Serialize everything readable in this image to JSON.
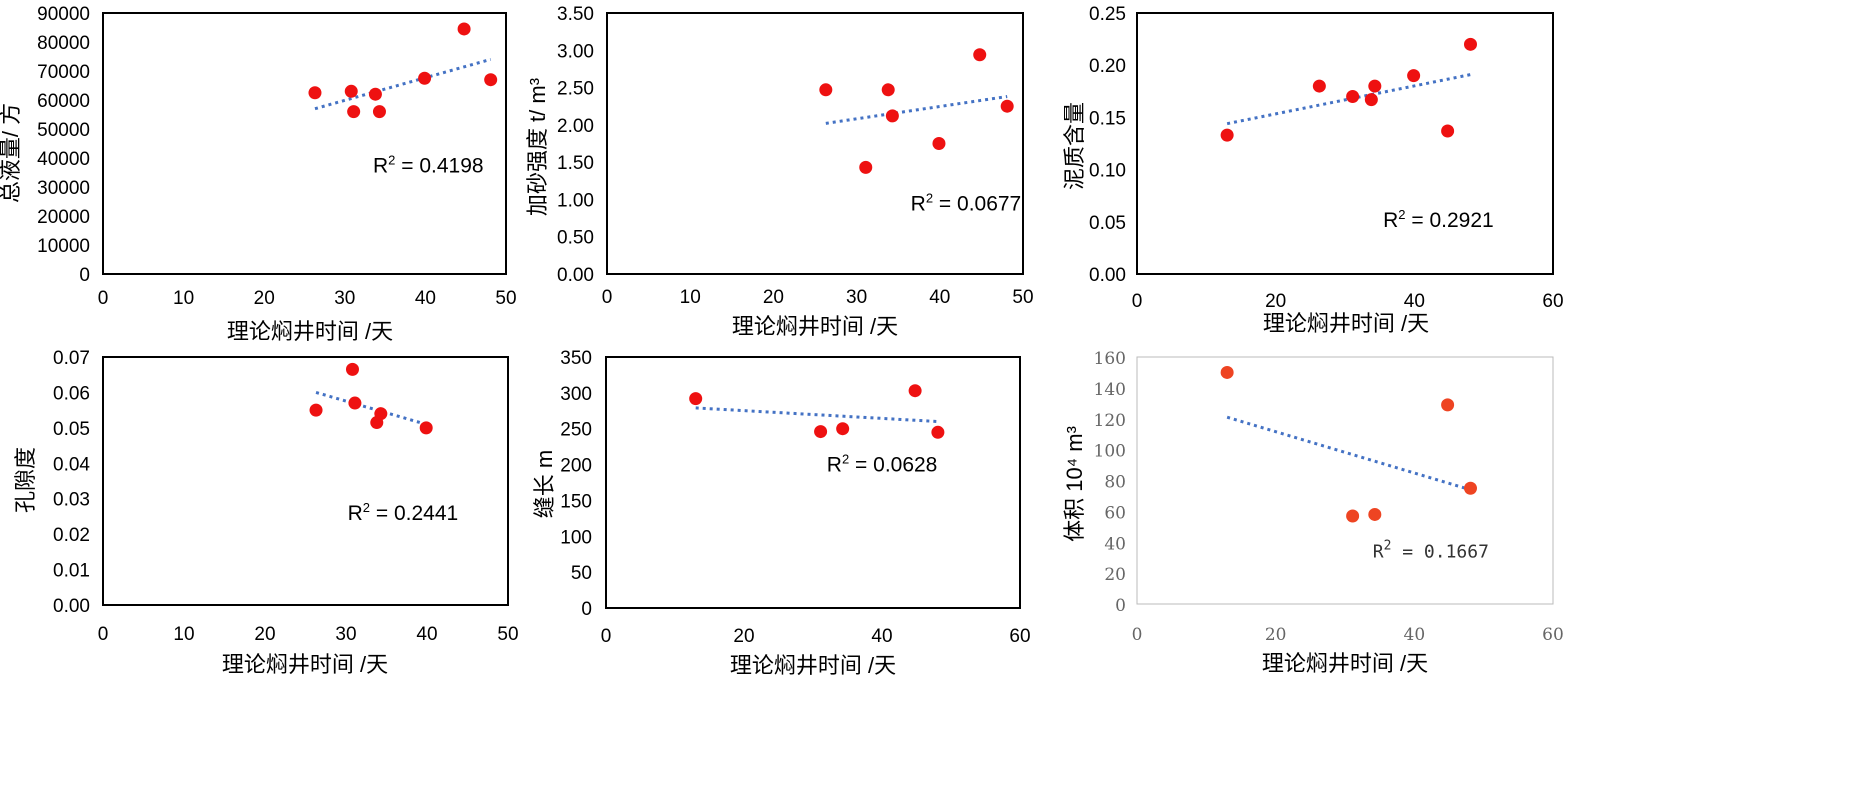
{
  "chart_data": [
    {
      "type": "scatter",
      "xlabel": "理论焖井时间 /天",
      "ylabel": "总液量/ 方",
      "xlim": [
        0,
        50
      ],
      "xticks": [
        0,
        10,
        20,
        30,
        40,
        50
      ],
      "ylim": [
        0,
        90000
      ],
      "yticks": [
        0,
        10000,
        20000,
        30000,
        40000,
        50000,
        60000,
        70000,
        80000,
        90000
      ],
      "yprecision": 0,
      "point_color": "#ee1111",
      "points": [
        [
          26.3,
          62500
        ],
        [
          30.8,
          63000
        ],
        [
          31.1,
          56000
        ],
        [
          33.8,
          62000
        ],
        [
          34.3,
          56000
        ],
        [
          39.9,
          67500
        ],
        [
          44.8,
          84500
        ],
        [
          48.1,
          67000
        ]
      ],
      "trendline": {
        "x": [
          26.3,
          48.1
        ],
        "y": [
          57000,
          74000
        ]
      },
      "r2_label": "R",
      "r2_value": " = 0.4198",
      "r2_anchor": [
        33.5,
        35000
      ]
    },
    {
      "type": "scatter",
      "xlabel": "理论焖井时间 /天",
      "ylabel": "加砂强度 t/ m³",
      "xlim": [
        0,
        50
      ],
      "xticks": [
        0,
        10,
        20,
        30,
        40,
        50
      ],
      "ylim": [
        0,
        3.5
      ],
      "yticks": [
        0,
        0.5,
        1,
        1.5,
        2,
        2.5,
        3,
        3.5
      ],
      "yprecision": 2,
      "point_color": "#ee1111",
      "points": [
        [
          26.3,
          2.47
        ],
        [
          31.1,
          1.43
        ],
        [
          33.8,
          2.47
        ],
        [
          34.3,
          2.12
        ],
        [
          39.9,
          1.75
        ],
        [
          44.8,
          2.94
        ],
        [
          48.1,
          2.25
        ]
      ],
      "trendline": {
        "x": [
          26.3,
          48.1
        ],
        "y": [
          2.02,
          2.38
        ]
      },
      "r2_label": "R",
      "r2_value": " = 0.0677",
      "r2_anchor": [
        36.5,
        0.85
      ]
    },
    {
      "type": "scatter",
      "xlabel": "理论焖井时间 /天",
      "ylabel": "泥质含量",
      "xlim": [
        0,
        60
      ],
      "xticks": [
        0,
        20,
        40,
        60
      ],
      "ylim": [
        0,
        0.25
      ],
      "yticks": [
        0,
        0.05,
        0.1,
        0.15,
        0.2,
        0.25
      ],
      "yprecision": 2,
      "point_color": "#ee1111",
      "points": [
        [
          13.0,
          0.133
        ],
        [
          26.3,
          0.18
        ],
        [
          31.1,
          0.17
        ],
        [
          33.8,
          0.167
        ],
        [
          34.3,
          0.18
        ],
        [
          39.9,
          0.19
        ],
        [
          44.8,
          0.137
        ],
        [
          48.1,
          0.22
        ]
      ],
      "trendline": {
        "x": [
          13.0,
          48.1
        ],
        "y": [
          0.144,
          0.191
        ]
      },
      "r2_label": "R",
      "r2_value": " = 0.2921",
      "r2_anchor": [
        35.5,
        0.045
      ]
    },
    {
      "type": "scatter",
      "xlabel": "理论焖井时间 /天",
      "ylabel": "孔隙度",
      "xlim": [
        0,
        50
      ],
      "xticks": [
        0,
        10,
        20,
        30,
        40,
        50
      ],
      "ylim": [
        0,
        0.07
      ],
      "yticks": [
        0,
        0.01,
        0.02,
        0.03,
        0.04,
        0.05,
        0.06,
        0.07
      ],
      "yprecision": 2,
      "point_color": "#ee1111",
      "points": [
        [
          26.3,
          0.055
        ],
        [
          30.8,
          0.0665
        ],
        [
          31.1,
          0.057
        ],
        [
          33.8,
          0.0515
        ],
        [
          34.3,
          0.054
        ],
        [
          39.9,
          0.05
        ]
      ],
      "trendline": {
        "x": [
          26.3,
          39.9
        ],
        "y": [
          0.06,
          0.051
        ]
      },
      "r2_label": "R",
      "r2_value": " = 0.2441",
      "r2_anchor": [
        30.2,
        0.024
      ]
    },
    {
      "type": "scatter",
      "xlabel": "理论焖井时间 /天",
      "ylabel": "缝长 m",
      "xlim": [
        0,
        60
      ],
      "xticks": [
        0,
        20,
        40,
        60
      ],
      "ylim": [
        0,
        350
      ],
      "yticks": [
        0,
        50,
        100,
        150,
        200,
        250,
        300,
        350
      ],
      "yprecision": 0,
      "point_color": "#ee1111",
      "points": [
        [
          13.0,
          292
        ],
        [
          31.1,
          246
        ],
        [
          34.3,
          250
        ],
        [
          44.8,
          303
        ],
        [
          48.1,
          245
        ]
      ],
      "trendline": {
        "x": [
          13.0,
          48.1
        ],
        "y": [
          279,
          260
        ]
      },
      "r2_label": "R",
      "r2_value": " = 0.0628",
      "r2_anchor": [
        32.0,
        190
      ]
    },
    {
      "type": "scatter",
      "xlabel": "理论焖井时间 /天",
      "ylabel": "体积 10⁴ m³",
      "xlim": [
        0,
        60
      ],
      "xticks": [
        0,
        20,
        40,
        60
      ],
      "ylim": [
        0,
        160
      ],
      "yticks": [
        0,
        20,
        40,
        60,
        80,
        100,
        120,
        140,
        160
      ],
      "yprecision": 0,
      "point_color": "#ee4422",
      "points": [
        [
          13.0,
          150
        ],
        [
          31.1,
          57
        ],
        [
          34.3,
          58
        ],
        [
          44.8,
          129
        ],
        [
          48.1,
          75
        ]
      ],
      "trendline": {
        "x": [
          13.0,
          48.1
        ],
        "y": [
          121,
          74
        ]
      },
      "r2_label": "R",
      "r2_value": " = 0.1667",
      "r2_anchor": [
        34.0,
        30
      ]
    }
  ]
}
